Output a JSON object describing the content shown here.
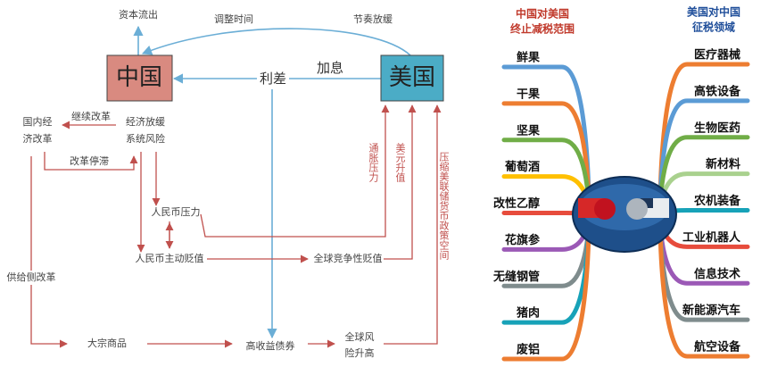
{
  "left": {
    "capital_outflow": "资本流出",
    "adjust_time": "调整时间",
    "pace_slowdown": "节奏放缓",
    "china": "中国",
    "usa": "美国",
    "rate_hike": "加息",
    "spread": "利差",
    "domestic_reform": [
      "国内经",
      "济改革"
    ],
    "continue_reform": "继续改革",
    "slowdown_risk": [
      "经济放缓",
      "系统风险"
    ],
    "reform_stall": "改革停滞",
    "rmb_pressure": "人民币压力",
    "rmb_devalue": "人民币主动贬值",
    "global_devalue": "全球竞争性贬值",
    "inflation": "通胀压力",
    "usd_up": "美元升值",
    "fed_space": "压缩美联储货币政策空间",
    "supply_reform": "供给侧改革",
    "commodities": "大宗商品",
    "high_yield": "高收益债券",
    "global_risk": [
      "全球风",
      "险升高"
    ]
  },
  "right": {
    "left_title": [
      "中国对美国",
      "终止减税范围"
    ],
    "right_title": [
      "美国对中国",
      "征税领域"
    ],
    "left_items": [
      "鲜果",
      "干果",
      "坚果",
      "葡萄酒",
      "改性乙醇",
      "花旗参",
      "无缝钢管",
      "猪肉",
      "废铝"
    ],
    "right_items": [
      "医疗器械",
      "高铁设备",
      "生物医药",
      "新材料",
      "农机装备",
      "工业机器人",
      "信息技术",
      "新能源汽车",
      "航空设备"
    ]
  }
}
